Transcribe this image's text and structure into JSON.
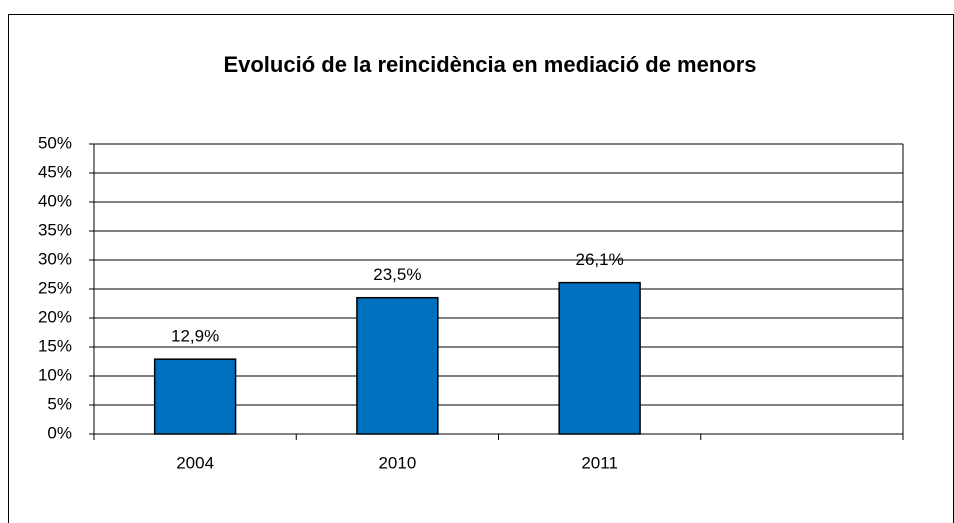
{
  "chart_data": {
    "type": "bar",
    "title": "Evolució de la reincidència en mediació de menors",
    "categories": [
      "2004",
      "2010",
      "2011",
      null
    ],
    "values": [
      12.9,
      23.5,
      26.1,
      null
    ],
    "value_labels": [
      "12,9%",
      "23,5%",
      "26,1%",
      null
    ],
    "color": "#0070c0",
    "ylim": [
      0,
      50
    ],
    "yticks": [
      {
        "value": 0,
        "label": "0%"
      },
      {
        "value": 5,
        "label": "5%"
      },
      {
        "value": 10,
        "label": "10%"
      },
      {
        "value": 15,
        "label": "15%"
      },
      {
        "value": 20,
        "label": "20%"
      },
      {
        "value": 25,
        "label": "25%"
      },
      {
        "value": 30,
        "label": "30%"
      },
      {
        "value": 35,
        "label": "35%"
      },
      {
        "value": 40,
        "label": "40%"
      },
      {
        "value": 45,
        "label": "45%"
      },
      {
        "value": 50,
        "label": "50%"
      }
    ],
    "grid": true
  }
}
